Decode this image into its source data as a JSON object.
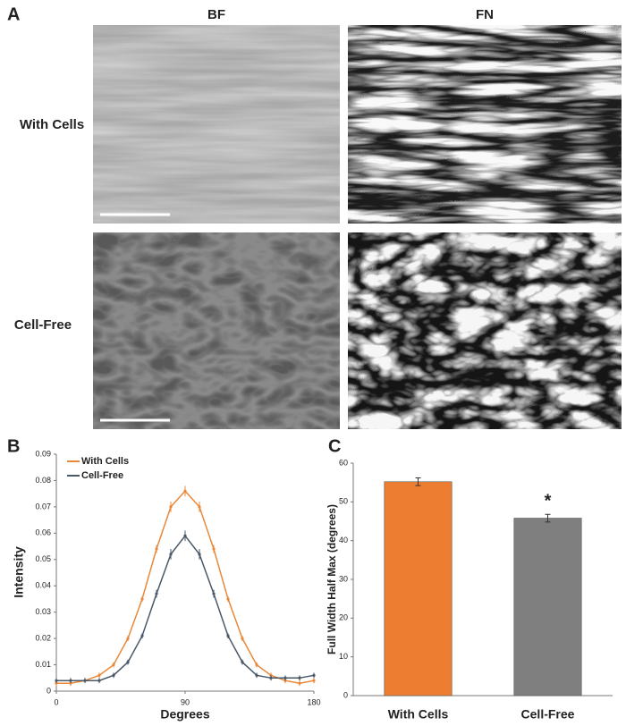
{
  "panel_a": {
    "label": "A",
    "columns": [
      "BF",
      "FN"
    ],
    "rows": [
      "With Cells",
      "Cell-Free"
    ]
  },
  "chart_data": [
    {
      "type": "line",
      "panel_label": "B",
      "xlabel": "Degrees",
      "ylabel": "Intensity",
      "x": [
        0,
        10,
        20,
        30,
        40,
        50,
        60,
        70,
        80,
        90,
        100,
        110,
        120,
        130,
        140,
        150,
        160,
        170,
        180
      ],
      "xlim": [
        0,
        180
      ],
      "xticks": [
        0,
        90,
        180
      ],
      "ylim": [
        0,
        0.09
      ],
      "yticks": [
        0,
        0.01,
        0.02,
        0.03,
        0.04,
        0.05,
        0.06,
        0.07,
        0.08,
        0.09
      ],
      "legend": "upper left",
      "series": [
        {
          "name": "With Cells",
          "color": "#e8883a",
          "values": [
            0.003,
            0.003,
            0.004,
            0.006,
            0.01,
            0.02,
            0.035,
            0.054,
            0.07,
            0.076,
            0.07,
            0.054,
            0.035,
            0.02,
            0.01,
            0.006,
            0.004,
            0.003,
            0.004
          ],
          "errors": [
            0.001,
            0.001,
            0.001,
            0.001,
            0.001,
            0.001,
            0.001,
            0.0015,
            0.002,
            0.002,
            0.002,
            0.0015,
            0.001,
            0.001,
            0.001,
            0.001,
            0.001,
            0.001,
            0.001
          ]
        },
        {
          "name": "Cell-Free",
          "color": "#4a5868",
          "values": [
            0.004,
            0.004,
            0.004,
            0.004,
            0.006,
            0.011,
            0.021,
            0.037,
            0.052,
            0.059,
            0.052,
            0.037,
            0.021,
            0.011,
            0.006,
            0.005,
            0.005,
            0.005,
            0.006
          ],
          "errors": [
            0.001,
            0.001,
            0.001,
            0.001,
            0.001,
            0.001,
            0.001,
            0.0015,
            0.002,
            0.002,
            0.002,
            0.0015,
            0.001,
            0.001,
            0.001,
            0.001,
            0.001,
            0.001,
            0.001
          ]
        }
      ]
    },
    {
      "type": "bar",
      "panel_label": "C",
      "ylabel": "Full Width Half Max (degrees)",
      "categories": [
        "With Cells",
        "Cell-Free"
      ],
      "values": [
        55.2,
        45.8
      ],
      "errors": [
        1.0,
        1.0
      ],
      "colors": [
        "#ed7d31",
        "#7f7f7f"
      ],
      "ylim": [
        0,
        60
      ],
      "yticks": [
        0,
        10,
        20,
        30,
        40,
        50,
        60
      ],
      "annotation": "*"
    }
  ]
}
